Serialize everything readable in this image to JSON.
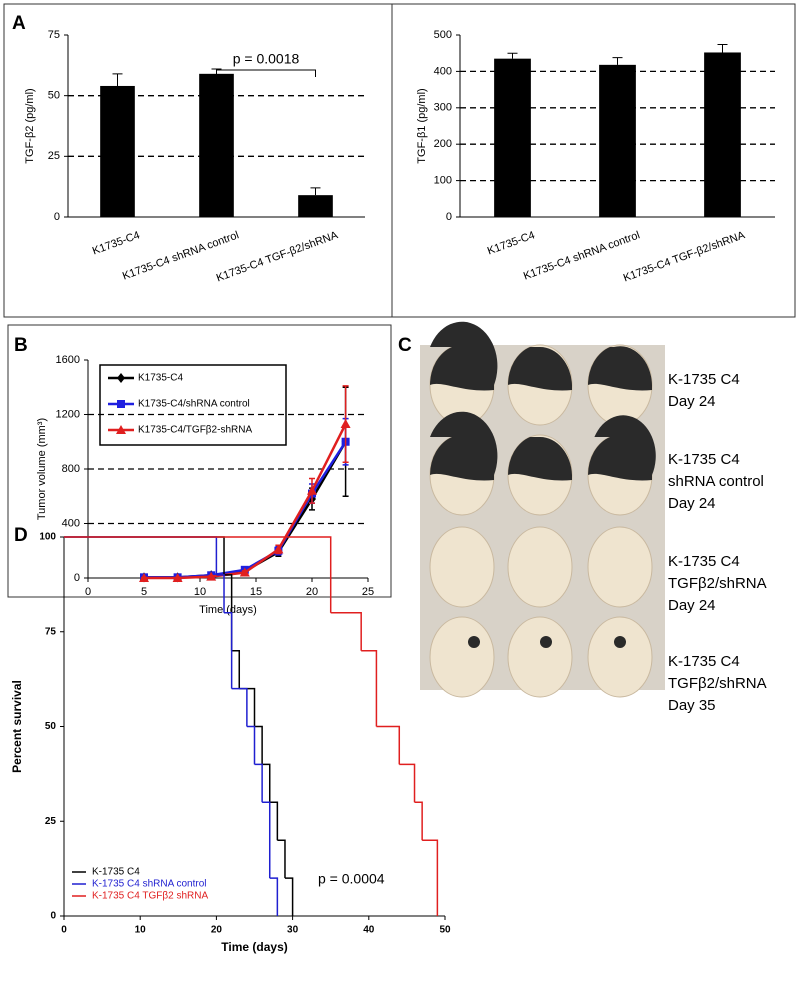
{
  "chart_data": [
    {
      "type": "bar",
      "panel": "A",
      "ylabel": "TGF-β2 (pg/ml)",
      "categories": [
        "K1735-C4",
        "K1735-C4  shRNA control",
        "K1735-C4  TGF-β2/shRNA"
      ],
      "values": [
        54,
        59,
        9
      ],
      "errors": [
        5,
        2,
        3
      ],
      "color": "#000000",
      "ylim": [
        0,
        75
      ],
      "yticks": [
        0,
        25,
        50,
        75
      ],
      "grid": true,
      "annotation": "p = 0.0018"
    },
    {
      "type": "bar",
      "ylabel": "TGF-β1 (pg/ml)",
      "categories": [
        "K1735-C4",
        "K1735-C4  shRNA control",
        "K1735-C4  TGF-β2/shRNA"
      ],
      "values": [
        435,
        418,
        452
      ],
      "errors": [
        15,
        20,
        22
      ],
      "color": "#000000",
      "ylim": [
        0,
        500
      ],
      "yticks": [
        0,
        100,
        200,
        300,
        400,
        500
      ],
      "grid": true
    },
    {
      "type": "line",
      "panel": "B",
      "xlabel": "Time (days)",
      "ylabel": "Tumor volume (mm³)",
      "x": [
        5,
        8,
        11,
        14,
        17,
        20,
        23
      ],
      "series": [
        {
          "name": "K1735-C4",
          "color": "#000000",
          "marker": "diamond",
          "values": [
            5,
            5,
            20,
            50,
            190,
            580,
            1000
          ],
          "errors": [
            5,
            5,
            8,
            15,
            30,
            80,
            400
          ]
        },
        {
          "name": "K1735-C4/shRNA control",
          "color": "#1f1fe0",
          "marker": "square",
          "values": [
            5,
            5,
            20,
            60,
            200,
            620,
            1000
          ],
          "errors": [
            5,
            5,
            8,
            15,
            30,
            70,
            170
          ]
        },
        {
          "name": "K1735-C4/TGFβ2-shRNA",
          "color": "#e01f1f",
          "marker": "triangle",
          "values": [
            0,
            0,
            10,
            40,
            210,
            640,
            1130
          ],
          "errors": [
            3,
            3,
            6,
            12,
            30,
            90,
            280
          ]
        }
      ],
      "xlim": [
        0,
        25
      ],
      "xticks": [
        0,
        5,
        10,
        15,
        20,
        25
      ],
      "ylim": [
        0,
        1600
      ],
      "yticks": [
        0,
        400,
        800,
        1200,
        1600
      ],
      "grid": true
    },
    {
      "type": "step",
      "panel": "D",
      "xlabel": "Time (days)",
      "ylabel": "Percent survival",
      "series": [
        {
          "name": "K-1735 C4",
          "color": "#000000",
          "x": [
            0,
            21,
            22,
            23,
            25,
            26,
            27,
            28,
            29,
            30
          ],
          "values": [
            100,
            90,
            70,
            60,
            50,
            40,
            30,
            20,
            10,
            0
          ]
        },
        {
          "name": "K-1735 C4 shRNA control",
          "color": "#1f1fd0",
          "x": [
            0,
            20,
            21,
            22,
            24,
            25,
            26,
            27,
            28
          ],
          "values": [
            100,
            90,
            80,
            60,
            50,
            40,
            30,
            10,
            0
          ]
        },
        {
          "name": "K-1735 C4 TGFβ2 shRNA",
          "color": "#e01f1f",
          "x": [
            0,
            35,
            39,
            41,
            44,
            46,
            47,
            49
          ],
          "values": [
            100,
            80,
            70,
            50,
            40,
            30,
            20,
            0
          ]
        }
      ],
      "xlim": [
        0,
        50
      ],
      "xticks": [
        0,
        10,
        20,
        30,
        40,
        50
      ],
      "ylim": [
        0,
        100
      ],
      "yticks": [
        0,
        25,
        50,
        75,
        100
      ],
      "annotation": "p = 0.0004"
    }
  ],
  "photo": {
    "panel": "C",
    "captions": [
      [
        "K-1735 C4",
        "Day 24"
      ],
      [
        "K-1735 C4",
        "shRNA control",
        "Day 24"
      ],
      [
        "K-1735 C4",
        "TGFβ2/shRNA",
        "Day 24"
      ],
      [
        "K-1735 C4",
        "TGFβ2/shRNA",
        "Day 35"
      ]
    ]
  }
}
